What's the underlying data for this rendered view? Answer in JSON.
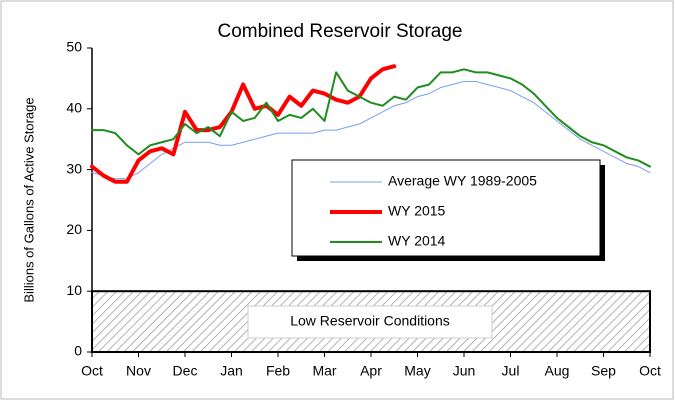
{
  "chart_data": {
    "type": "line",
    "title": "Combined Reservoir Storage",
    "y_label": "Billions of Gallons of Active Storage",
    "annotation": "Low Reservoir Conditions",
    "low_threshold": 10,
    "x": [
      0,
      0.25,
      0.5,
      0.75,
      1,
      1.25,
      1.5,
      1.75,
      2,
      2.25,
      2.5,
      2.75,
      3,
      3.25,
      3.5,
      3.75,
      4,
      4.25,
      4.5,
      4.75,
      5,
      5.25,
      5.5,
      5.75,
      6,
      6.25,
      6.5,
      6.75,
      7,
      7.25,
      7.5,
      7.75,
      8,
      8.25,
      8.5,
      8.75,
      9,
      9.25,
      9.5,
      9.75,
      10,
      10.25,
      10.5,
      10.75,
      11,
      11.25,
      11.5,
      11.75,
      12
    ],
    "xlim": [
      0,
      12
    ],
    "xticks": [
      {
        "value": 0,
        "label": "Oct"
      },
      {
        "value": 1,
        "label": "Nov"
      },
      {
        "value": 2,
        "label": "Dec"
      },
      {
        "value": 3,
        "label": "Jan"
      },
      {
        "value": 4,
        "label": "Feb"
      },
      {
        "value": 5,
        "label": "Mar"
      },
      {
        "value": 6,
        "label": "Apr"
      },
      {
        "value": 7,
        "label": "May"
      },
      {
        "value": 8,
        "label": "Jun"
      },
      {
        "value": 9,
        "label": "Jul"
      },
      {
        "value": 10,
        "label": "Aug"
      },
      {
        "value": 11,
        "label": "Sep"
      },
      {
        "value": 12,
        "label": "Oct"
      }
    ],
    "ylim": [
      0,
      50
    ],
    "yticks": [
      0,
      10,
      20,
      30,
      40,
      50
    ],
    "grid": false,
    "legend": "center-right",
    "series": [
      {
        "name": "Average WY 1989-2005",
        "color": "#7b9cf0",
        "width": 1,
        "values": [
          29.5,
          29,
          28.5,
          28.5,
          29.5,
          31,
          32.5,
          33.5,
          34.5,
          34.5,
          34.5,
          34,
          34,
          34.5,
          35,
          35.5,
          36,
          36,
          36,
          36,
          36.5,
          36.5,
          37,
          37.5,
          38.5,
          39.5,
          40.5,
          41,
          42,
          42.5,
          43.5,
          44,
          44.5,
          44.5,
          44,
          43.5,
          43,
          42,
          41,
          39.5,
          38,
          36.5,
          35,
          34,
          33,
          32,
          31,
          30.5,
          29.5
        ]
      },
      {
        "name": "WY 2015",
        "color": "#ff0000",
        "width": 4,
        "values": [
          30.5,
          29,
          28,
          28,
          31.5,
          33,
          33.5,
          32.5,
          39.5,
          36.5,
          36.5,
          37,
          39.5,
          44,
          40,
          40.5,
          39,
          42,
          40.5,
          43,
          42.5,
          41.5,
          41,
          42,
          45,
          46.5,
          47,
          null,
          null,
          null,
          null,
          null,
          null,
          null,
          null,
          null,
          null,
          null,
          null,
          null,
          null,
          null,
          null,
          null,
          null,
          null,
          null,
          null,
          null
        ]
      },
      {
        "name": "WY 2014",
        "color": "#1e8c1e",
        "width": 2,
        "values": [
          36.5,
          36.5,
          36,
          34,
          32.5,
          34,
          34.5,
          35,
          37.5,
          36,
          37,
          35.5,
          39.5,
          38,
          38.5,
          41,
          38,
          39,
          38.5,
          40,
          38,
          46,
          43,
          42,
          41,
          40.5,
          42,
          41.5,
          43.5,
          44,
          46,
          46,
          46.5,
          46,
          46,
          45.5,
          45,
          44,
          42.5,
          40.5,
          38.5,
          37,
          35.5,
          34.5,
          34,
          33,
          32,
          31.5,
          30.5
        ]
      }
    ]
  }
}
